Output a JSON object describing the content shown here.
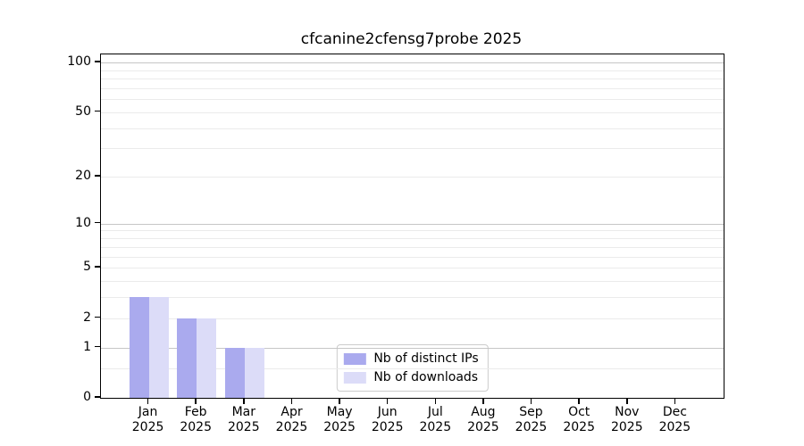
{
  "chart_data": {
    "type": "bar",
    "title": "cfcanine2cfensg7probe 2025",
    "categories": [
      {
        "month": "Jan",
        "year": "2025"
      },
      {
        "month": "Feb",
        "year": "2025"
      },
      {
        "month": "Mar",
        "year": "2025"
      },
      {
        "month": "Apr",
        "year": "2025"
      },
      {
        "month": "May",
        "year": "2025"
      },
      {
        "month": "Jun",
        "year": "2025"
      },
      {
        "month": "Jul",
        "year": "2025"
      },
      {
        "month": "Aug",
        "year": "2025"
      },
      {
        "month": "Sep",
        "year": "2025"
      },
      {
        "month": "Oct",
        "year": "2025"
      },
      {
        "month": "Nov",
        "year": "2025"
      },
      {
        "month": "Dec",
        "year": "2025"
      }
    ],
    "series": [
      {
        "name": "Nb of distinct IPs",
        "color": "#aaaaee",
        "values": [
          3,
          2,
          1,
          0,
          0,
          0,
          0,
          0,
          0,
          0,
          0,
          0
        ]
      },
      {
        "name": "Nb of downloads",
        "color": "#dcdcf8",
        "values": [
          3,
          2,
          1,
          0,
          0,
          0,
          0,
          0,
          0,
          0,
          0,
          0
        ]
      }
    ],
    "yscale": "log1p",
    "ylim": [
      0,
      110
    ],
    "yticks": [
      0,
      1,
      2,
      5,
      10,
      20,
      50,
      100
    ],
    "grid": {
      "major_values": [
        1,
        10,
        100
      ],
      "minor_values": [
        0.5,
        2,
        3,
        4,
        5,
        6,
        7,
        8,
        9,
        20,
        30,
        40,
        50,
        60,
        70,
        80,
        90
      ],
      "major_color": "#c6c6c6",
      "minor_color": "#ebebeb"
    },
    "legend": {
      "position": "lower center"
    },
    "xlabel": "",
    "ylabel": ""
  }
}
